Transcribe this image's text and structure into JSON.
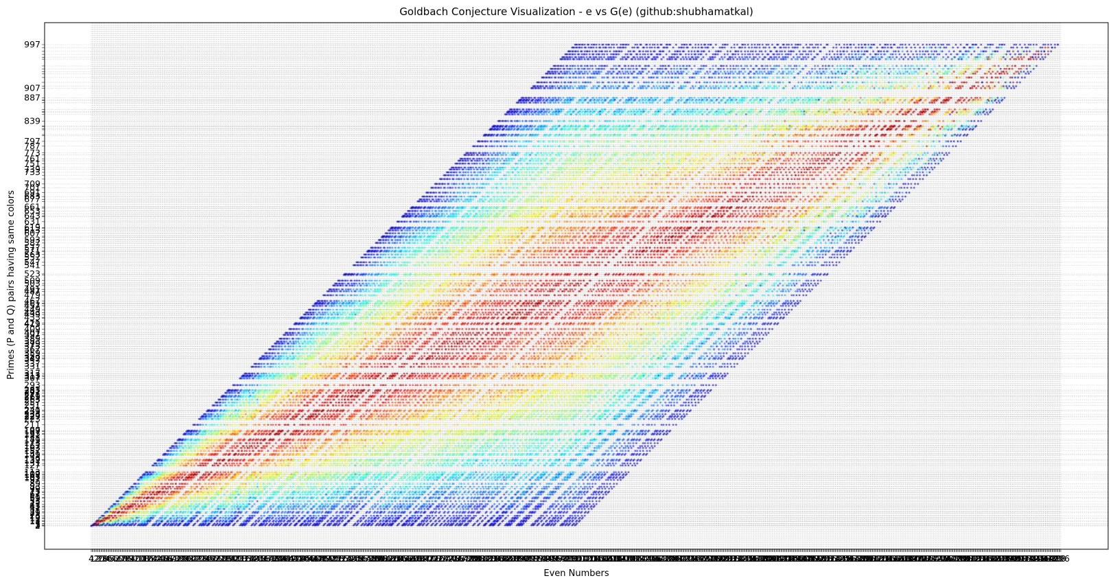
{
  "chart_data": {
    "type": "scatter",
    "title": "Goldbach Conjecture Visualization - e vs G(e)     (github:shubhamatkal)",
    "xlabel": "Even Numbers",
    "ylabel": "Primes (P and Q) pairs having same colors",
    "x_domain": [
      4,
      2000
    ],
    "y_domain": [
      2,
      997
    ],
    "x_tick_first": "4",
    "x_tick_last": "2000",
    "x_tick_step": 2,
    "y_ticks": "primes 2..997",
    "y_visible_labels": [
      "997",
      "907",
      "887",
      "839",
      "797",
      "787",
      "773",
      "761",
      "751",
      "739",
      "733",
      "709",
      "701",
      "691",
      "683",
      "677",
      "661",
      "653",
      "643",
      "631",
      "619",
      "613",
      "607",
      "593",
      "587",
      "577",
      "571",
      "563",
      "557",
      "547",
      "541",
      "523",
      "509",
      "503",
      "491",
      "487",
      "479",
      "467",
      "461",
      "457",
      "449",
      "443",
      "439",
      "433",
      "421",
      "419",
      "409",
      "401",
      "397",
      "389",
      "383",
      "379",
      "373",
      "367",
      "359",
      "353",
      "349",
      "347",
      "337",
      "331",
      "317",
      "313",
      "311",
      "307",
      "293",
      "283",
      "281",
      "277",
      "271",
      "269",
      "263",
      "257",
      "251",
      "241",
      "239",
      "233",
      "229",
      "227",
      "223",
      "211",
      "199",
      "197",
      "193",
      "191",
      "181",
      "179",
      "173",
      "167",
      "163",
      "157",
      "151",
      "149",
      "139",
      "137",
      "131",
      "127",
      "113",
      "109",
      "107",
      "103",
      "101",
      "97",
      "89",
      "83",
      "79",
      "73",
      "71",
      "67",
      "61",
      "59",
      "53",
      "47",
      "43",
      "41",
      "37",
      "31",
      "29",
      "23",
      "19",
      "17",
      "13",
      "11",
      "7",
      "5",
      "3",
      "2"
    ],
    "series_description": "For each even number e from 4 to 2000, every prime pair (P, Q) with P + Q = e and P <= Q is plotted as two points (e, P) and (e, Q) sharing one color; colors cycle through a jet colormap by pair index.",
    "grid": true,
    "grid_style": "dotted",
    "marker": "small dot",
    "colormap": [
      "#00007f",
      "#0000ff",
      "#007fff",
      "#00ffff",
      "#7fff7f",
      "#ffff00",
      "#ff7f00",
      "#ff0000",
      "#7f0000"
    ],
    "grid_color": "#b0b0b0"
  }
}
